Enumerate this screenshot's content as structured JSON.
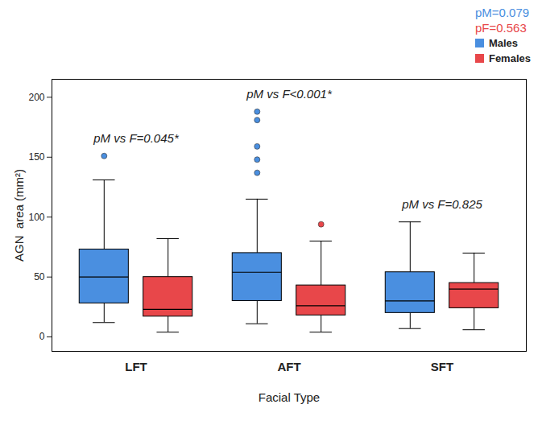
{
  "chart_data": {
    "type": "boxplot",
    "x_label": "Facial Type",
    "y_label": "AGN  area (mm²)",
    "categories": [
      "LFT",
      "AFT",
      "SFT"
    ],
    "ylim": [
      -12,
      215
    ],
    "yticks": [
      0,
      50,
      100,
      150,
      200
    ],
    "legend": "top-right",
    "series": [
      {
        "name": "Males",
        "color": "#4a8fe0",
        "boxes": [
          {
            "whisker_low": 12,
            "q1": 28,
            "median": 50,
            "q3": 73,
            "whisker_high": 131,
            "outliers": [
              151
            ]
          },
          {
            "whisker_low": 11,
            "q1": 30,
            "median": 54,
            "q3": 70,
            "whisker_high": 115,
            "outliers": [
              137,
              148,
              159,
              181,
              188
            ]
          },
          {
            "whisker_low": 7,
            "q1": 20,
            "median": 30,
            "q3": 54,
            "whisker_high": 96,
            "outliers": []
          }
        ]
      },
      {
        "name": "Females",
        "color": "#e8474a",
        "boxes": [
          {
            "whisker_low": 4,
            "q1": 17,
            "median": 23,
            "q3": 50,
            "whisker_high": 82,
            "outliers": []
          },
          {
            "whisker_low": 4,
            "q1": 18,
            "median": 26,
            "q3": 43,
            "whisker_high": 80,
            "outliers": [
              94
            ]
          },
          {
            "whisker_low": 6,
            "q1": 24,
            "median": 40,
            "q3": 45,
            "whisker_high": 70,
            "outliers": []
          }
        ]
      }
    ],
    "annotations": [
      {
        "category": "LFT",
        "text": "pM vs F=0.045*"
      },
      {
        "category": "AFT",
        "text": "pM vs F<0.001*"
      },
      {
        "category": "SFT",
        "text": "pM vs F=0.825"
      }
    ],
    "group_tests": [
      {
        "series": "Males",
        "text": "pM=0.079"
      },
      {
        "series": "Females",
        "text": "pF=0.563"
      }
    ]
  }
}
